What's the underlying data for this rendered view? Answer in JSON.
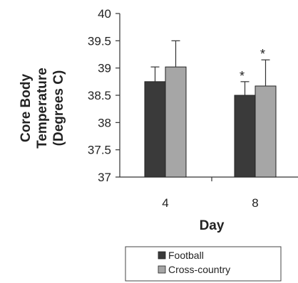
{
  "chart_data": {
    "type": "bar",
    "xlabel": "Day",
    "ylabel": [
      "Core Body",
      "Temperature",
      "(Degrees C)"
    ],
    "ylim": [
      37,
      40
    ],
    "yticks": [
      "37",
      "37.5",
      "38",
      "38.5",
      "39",
      "39.5",
      "40"
    ],
    "categories": [
      "4",
      "8"
    ],
    "series": [
      {
        "name": "Football",
        "values": [
          38.75,
          38.5
        ],
        "error": [
          0.27,
          0.25
        ],
        "color": "#3a3a3a"
      },
      {
        "name": "Cross-country",
        "values": [
          39.02,
          38.67
        ],
        "error": [
          0.48,
          0.48
        ],
        "color": "#a6a6a6"
      }
    ],
    "annotations": {
      "day4": [
        "",
        ""
      ],
      "day8": [
        "*",
        "*"
      ]
    },
    "legend_position": "bottom",
    "grid": false
  }
}
